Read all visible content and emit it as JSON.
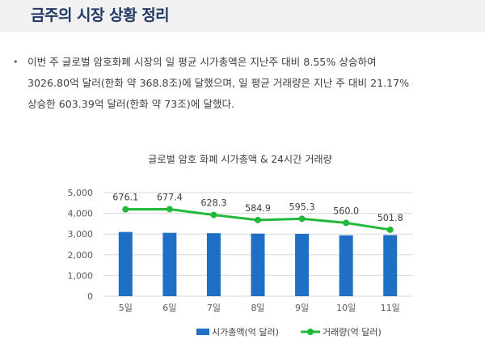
{
  "header": {
    "title": "금주의 시장 상황 정리"
  },
  "summary": {
    "lines": [
      "이번 주 글로벌 암호화폐 시장의 일 평균 시가총액은 지난주 대비 8.55% 상승하여",
      "3026.80억 달러(한화 약 368.8조)에 달했으며, 일 평균 거래량은 지난 주 대비 21.17%",
      "상승한 603.39억 달러(한화 약 73조)에 달했다."
    ]
  },
  "chart_data": {
    "type": "bar",
    "title": "글로벌 암호 화폐 시가총액 & 24시간 거래량",
    "categories": [
      "5일",
      "6일",
      "7일",
      "8일",
      "9일",
      "10일",
      "11일"
    ],
    "ylim": [
      0,
      5000
    ],
    "yticks": [
      "0",
      "1,000",
      "2,000",
      "3,000",
      "4,000",
      "5,000"
    ],
    "grid": true,
    "legend_position": "bottom",
    "series": [
      {
        "name": "시가총액(억 달러)",
        "type": "bar",
        "color": "#1f6fc4",
        "values": [
          3100,
          3060,
          3040,
          3020,
          3010,
          2940,
          2950
        ]
      },
      {
        "name": "거래량(억 달러)",
        "type": "line",
        "color": "#22b83a",
        "values": [
          676.1,
          677.4,
          628.3,
          584.9,
          595.3,
          560.0,
          501.8
        ],
        "labels": [
          "676.1",
          "677.4",
          "628.3",
          "584.9",
          "595.3",
          "560.0",
          "501.8"
        ]
      }
    ]
  }
}
